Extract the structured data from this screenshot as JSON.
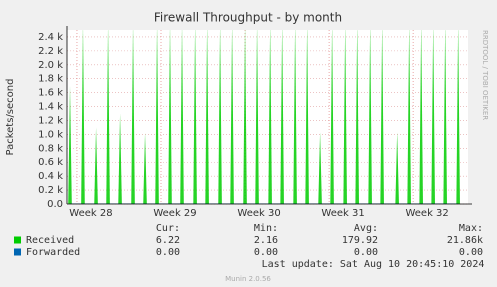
{
  "chart_data": {
    "type": "spike",
    "title": "Firewall Throughput - by month",
    "y_label": "Packets/second",
    "side_text": "RRDTOOL / TOBI OETIKER",
    "xlim": [
      0,
      33.4
    ],
    "xticks": [
      {
        "value": 0.83,
        "label": "Week 28"
      },
      {
        "value": 7.83,
        "label": "Week 29"
      },
      {
        "value": 14.83,
        "label": "Week 30"
      },
      {
        "value": 21.83,
        "label": "Week 31"
      },
      {
        "value": 28.83,
        "label": "Week 32"
      }
    ],
    "ylim": [
      0,
      2500
    ],
    "yticks": [
      {
        "value": 0,
        "label": "0.0"
      },
      {
        "value": 200,
        "label": "0.2 k"
      },
      {
        "value": 400,
        "label": "0.4 k"
      },
      {
        "value": 600,
        "label": "0.6 k"
      },
      {
        "value": 800,
        "label": "0.8 k"
      },
      {
        "value": 1000,
        "label": "1.0 k"
      },
      {
        "value": 1200,
        "label": "1.2 k"
      },
      {
        "value": 1400,
        "label": "1.4 k"
      },
      {
        "value": 1600,
        "label": "1.6 k"
      },
      {
        "value": 1800,
        "label": "1.8 k"
      },
      {
        "value": 2000,
        "label": "2.0 k"
      },
      {
        "value": 2200,
        "label": "2.2 k"
      },
      {
        "value": 2400,
        "label": "2.4 k"
      }
    ],
    "grid": true,
    "x": [
      0.25,
      1.33,
      2.42,
      3.42,
      4.42,
      5.5,
      6.5,
      7.5,
      8.58,
      9.58,
      10.67,
      11.67,
      12.75,
      13.75,
      14.83,
      15.83,
      16.92,
      17.92,
      19,
      20,
      21.08,
      22.08,
      23.17,
      24.17,
      25.25,
      26.25,
      27.5,
      28.5,
      29.5,
      30.5,
      31.5,
      32.58
    ],
    "series": [
      {
        "name": "Received",
        "color": "#00cc00",
        "values": [
          1700,
          2600,
          1100,
          2600,
          1300,
          2600,
          1020,
          2600,
          2600,
          2600,
          2600,
          2600,
          2600,
          2600,
          2600,
          2600,
          2600,
          2600,
          2600,
          2600,
          1030,
          2600,
          2600,
          2600,
          2600,
          2600,
          1030,
          2600,
          2600,
          2600,
          2600,
          2600
        ]
      },
      {
        "name": "Forwarded",
        "color": "#0066b3",
        "values": [
          0,
          0,
          0,
          0,
          0,
          0,
          0,
          0,
          0,
          0,
          0,
          0,
          0,
          0,
          0,
          0,
          0,
          0,
          0,
          0,
          0,
          0,
          0,
          0,
          0,
          0,
          0,
          0,
          0,
          0,
          0,
          0
        ]
      }
    ],
    "legend_table": {
      "headers": [
        "Cur:",
        "Min:",
        "Avg:",
        "Max:"
      ],
      "rows": [
        [
          "6.22",
          "2.16",
          "179.92",
          "21.86k"
        ],
        [
          "0.00",
          "0.00",
          "0.00",
          "0.00"
        ]
      ]
    },
    "last_update": "Last update: Sat Aug 10 20:45:10 2024",
    "footer": "Munin 2.0.56"
  }
}
